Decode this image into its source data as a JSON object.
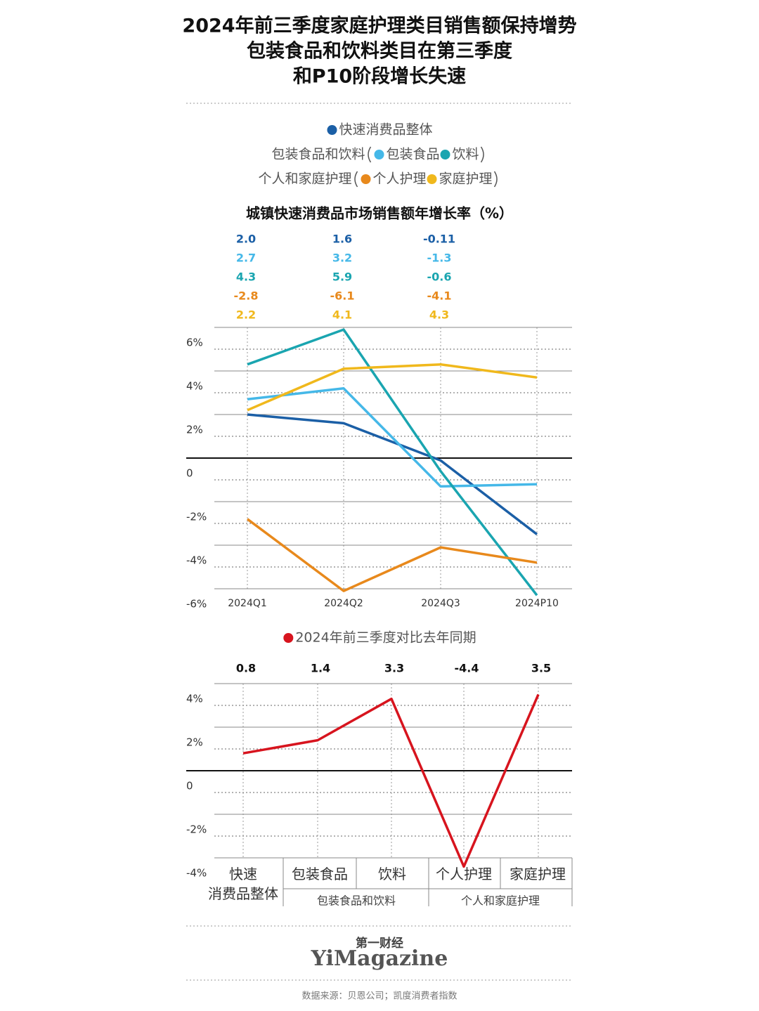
{
  "title": [
    "2024年前三季度家庭护理类目销售额保持增势",
    "包装食品和饮料类目在第三季度",
    "和P10阶段增长失速"
  ],
  "chart_data": [
    {
      "type": "line",
      "title": "城镇快速消费品市场销售额年增长率（%）",
      "categories": [
        "2024Q1",
        "2024Q2",
        "2024Q3",
        "2024P10"
      ],
      "legend_groups": [
        "包装食品和饮料",
        "个人和家庭护理"
      ],
      "series": [
        {
          "name": "快速消费品整体",
          "color": "#1b5fa6",
          "values": [
            2.0,
            1.6,
            -0.11,
            -3.5
          ],
          "value_labels": [
            "2.0",
            "1.6",
            "-0.11",
            null
          ]
        },
        {
          "name": "包装食品",
          "color": "#45b8e8",
          "values": [
            2.7,
            3.2,
            -1.3,
            -1.2
          ],
          "value_labels": [
            "2.7",
            "3.2",
            "-1.3",
            null
          ]
        },
        {
          "name": "饮料",
          "color": "#1aa5b0",
          "values": [
            4.3,
            5.9,
            -0.6,
            -6.3
          ],
          "value_labels": [
            "4.3",
            "5.9",
            "-0.6",
            null
          ]
        },
        {
          "name": "个人护理",
          "color": "#e8891c",
          "values": [
            -2.8,
            -6.1,
            -4.1,
            -4.8
          ],
          "value_labels": [
            "-2.8",
            "-6.1",
            "-4.1",
            null
          ]
        },
        {
          "name": "家庭护理",
          "color": "#f0b81c",
          "values": [
            2.2,
            4.1,
            4.3,
            3.7
          ],
          "value_labels": [
            "2.2",
            "4.1",
            "4.3",
            null
          ]
        }
      ],
      "ylim": [
        -6,
        6
      ],
      "yticks": [
        {
          "value": -6,
          "label": "-6%"
        },
        {
          "value": -4,
          "label": "-4%"
        },
        {
          "value": -2,
          "label": "-2%"
        },
        0,
        {
          "value": 2,
          "label": "2%"
        },
        {
          "value": 4,
          "label": "4%"
        },
        {
          "value": 6,
          "label": "6%"
        }
      ],
      "grid": true
    },
    {
      "type": "line",
      "categories": [
        "快速\n消费品整体",
        "包装食品",
        "饮料",
        "个人护理",
        "家庭护理"
      ],
      "category_groups": [
        "包装食品和饮料",
        "个人和家庭护理"
      ],
      "series": [
        {
          "name": "2024年前三季度对比去年同期",
          "color": "#d7141e",
          "values": [
            0.8,
            1.4,
            3.3,
            -4.4,
            3.5
          ]
        }
      ],
      "ylim": [
        -4,
        4
      ],
      "yticks": [
        {
          "value": -4,
          "label": "-4%"
        },
        {
          "value": -2,
          "label": "-2%"
        },
        0,
        {
          "value": 2,
          "label": "2%"
        },
        {
          "value": 4,
          "label": "4%"
        }
      ],
      "grid": true
    }
  ],
  "brand": {
    "name": "第一财经",
    "logo": "YiMagazine"
  },
  "source": "数据来源：贝恩公司；凯度消费者指数"
}
